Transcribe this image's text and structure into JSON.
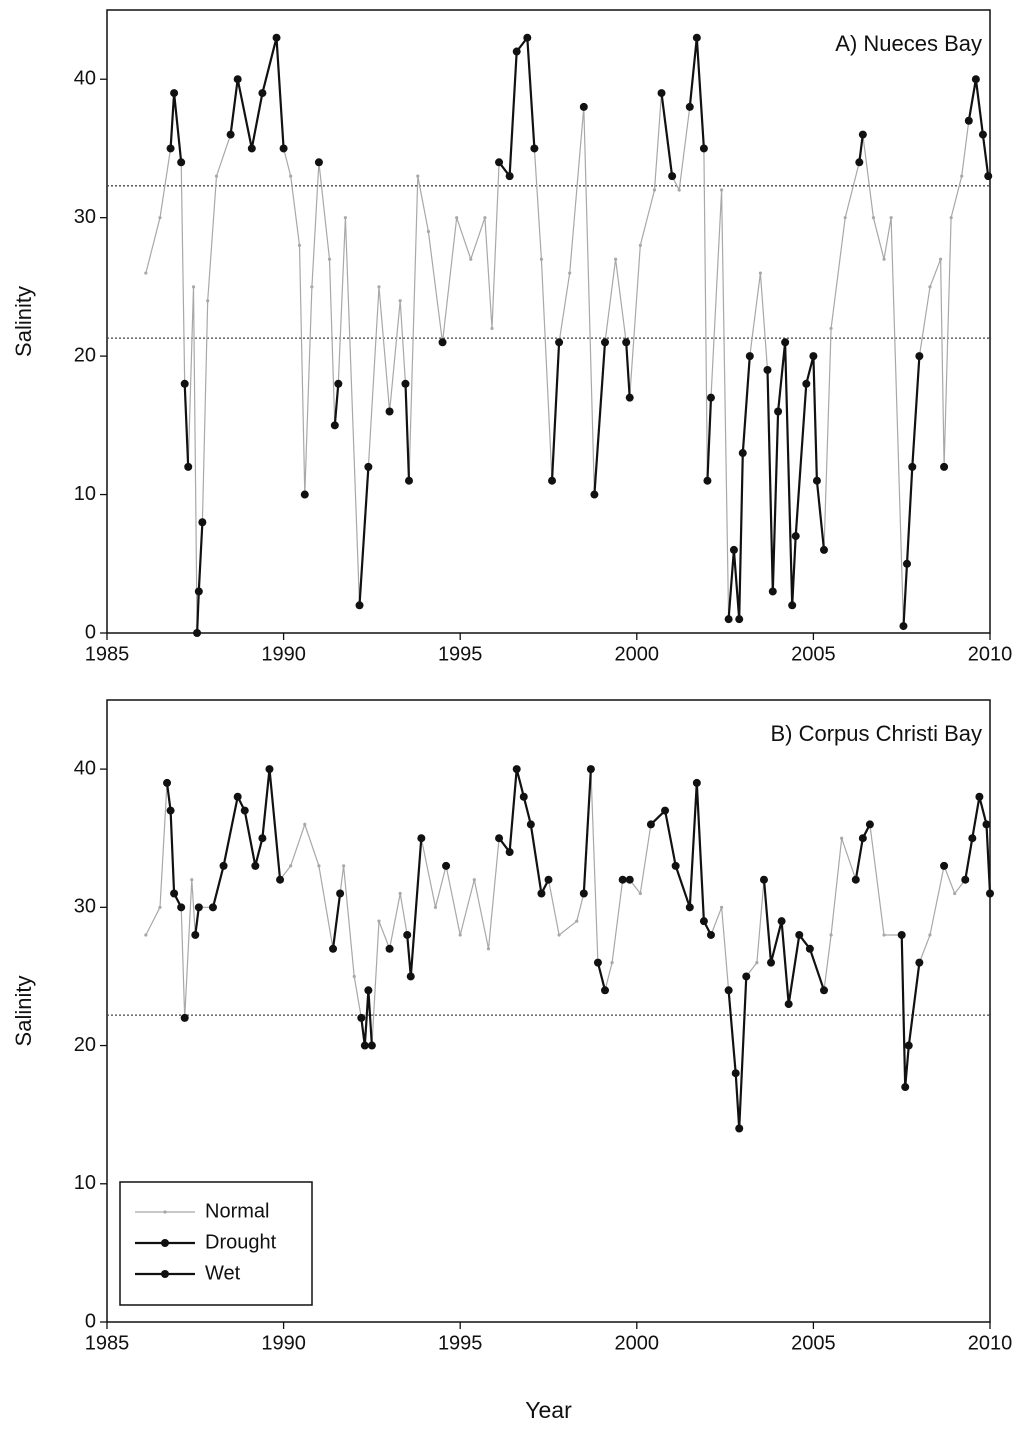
{
  "chart_data": [
    {
      "type": "line",
      "title": "A) Nueces Bay",
      "y_label": "Salinity",
      "x": [
        1986.1,
        1986.5,
        1986.8,
        1986.9,
        1987.1,
        1987.2,
        1987.3,
        1987.45,
        1987.55,
        1987.6,
        1987.7,
        1987.85,
        1988.1,
        1988.5,
        1988.7,
        1989.1,
        1989.4,
        1989.8,
        1990.0,
        1990.2,
        1990.45,
        1990.6,
        1990.8,
        1991.0,
        1991.3,
        1991.45,
        1991.55,
        1991.75,
        1992.15,
        1992.4,
        1992.7,
        1993.0,
        1993.3,
        1993.45,
        1993.55,
        1993.8,
        1994.1,
        1994.5,
        1994.9,
        1995.3,
        1995.7,
        1995.9,
        1996.1,
        1996.4,
        1996.6,
        1996.9,
        1997.1,
        1997.3,
        1997.6,
        1997.8,
        1998.1,
        1998.5,
        1998.8,
        1999.1,
        1999.4,
        1999.7,
        1999.8,
        2000.1,
        2000.5,
        2000.7,
        2001.0,
        2001.2,
        2001.5,
        2001.7,
        2001.9,
        2002.0,
        2002.1,
        2002.4,
        2002.6,
        2002.75,
        2002.9,
        2003.0,
        2003.2,
        2003.5,
        2003.7,
        2003.85,
        2004.0,
        2004.2,
        2004.4,
        2004.5,
        2004.8,
        2005.0,
        2005.1,
        2005.3,
        2005.5,
        2005.9,
        2006.3,
        2006.4,
        2006.7,
        2007.0,
        2007.2,
        2007.55,
        2007.65,
        2007.8,
        2008.0,
        2008.3,
        2008.6,
        2008.7,
        2008.9,
        2009.2,
        2009.4,
        2009.6,
        2009.8,
        2009.95
      ],
      "series": [
        {
          "name": "Normal",
          "color": "#a8a8a8",
          "values": [
            26,
            30,
            35,
            39,
            34,
            18,
            12,
            25,
            0,
            3,
            8,
            24,
            33,
            36,
            40,
            35,
            39,
            43,
            35,
            33,
            28,
            10,
            25,
            34,
            27,
            15,
            18,
            30,
            2,
            12,
            25,
            16,
            24,
            18,
            11,
            33,
            29,
            21,
            30,
            27,
            30,
            22,
            34,
            33,
            42,
            43,
            35,
            27,
            11,
            21,
            26,
            38,
            10,
            21,
            27,
            21,
            17,
            28,
            32,
            39,
            33,
            32,
            38,
            43,
            35,
            11,
            17,
            32,
            1,
            6,
            1,
            13,
            20,
            26,
            19,
            3,
            16,
            21,
            2,
            7,
            18,
            20,
            11,
            6,
            22,
            30,
            34,
            36,
            30,
            27,
            30,
            0.5,
            5,
            12,
            20,
            25,
            27,
            12,
            30,
            33,
            37,
            40,
            36,
            33
          ]
        },
        {
          "name": "Drought",
          "color": "#111111",
          "values": [
            null,
            null,
            35,
            39,
            34,
            null,
            null,
            null,
            null,
            null,
            null,
            null,
            null,
            36,
            40,
            35,
            39,
            43,
            35,
            null,
            null,
            null,
            null,
            34,
            null,
            null,
            null,
            null,
            null,
            null,
            null,
            null,
            null,
            null,
            null,
            null,
            null,
            null,
            null,
            null,
            null,
            null,
            34,
            33,
            42,
            43,
            35,
            null,
            null,
            null,
            null,
            38,
            null,
            null,
            null,
            null,
            null,
            null,
            null,
            39,
            33,
            null,
            38,
            43,
            35,
            null,
            null,
            null,
            null,
            null,
            null,
            null,
            null,
            null,
            null,
            null,
            null,
            null,
            null,
            null,
            null,
            null,
            null,
            null,
            null,
            null,
            34,
            36,
            null,
            null,
            null,
            null,
            null,
            null,
            null,
            null,
            null,
            null,
            null,
            null,
            37,
            40,
            36,
            33
          ]
        },
        {
          "name": "Wet",
          "color": "#111111",
          "values": [
            null,
            null,
            null,
            null,
            null,
            18,
            12,
            null,
            0,
            3,
            8,
            null,
            null,
            null,
            null,
            null,
            null,
            null,
            null,
            null,
            null,
            10,
            null,
            null,
            null,
            15,
            18,
            null,
            2,
            12,
            null,
            16,
            null,
            18,
            11,
            null,
            null,
            21,
            null,
            null,
            null,
            null,
            null,
            null,
            null,
            null,
            null,
            null,
            11,
            21,
            null,
            null,
            10,
            21,
            null,
            21,
            17,
            null,
            null,
            null,
            null,
            null,
            null,
            null,
            null,
            11,
            17,
            null,
            1,
            6,
            1,
            13,
            20,
            null,
            19,
            3,
            16,
            21,
            2,
            7,
            18,
            20,
            11,
            6,
            null,
            null,
            null,
            null,
            null,
            null,
            null,
            0.5,
            5,
            12,
            20,
            null,
            null,
            12,
            null,
            null,
            null,
            null,
            null,
            null
          ]
        }
      ],
      "reference_lines": [
        32.3,
        21.3
      ],
      "xlim": [
        1985,
        2010
      ],
      "xticks": [
        1985,
        1990,
        1995,
        2000,
        2005,
        2010
      ],
      "ylim": [
        0,
        45
      ],
      "yticks": [
        0,
        10,
        20,
        30,
        40
      ]
    },
    {
      "type": "line",
      "title": "B) Corpus Christi Bay",
      "y_label": "Salinity",
      "x_label": "Year",
      "x": [
        1986.1,
        1986.5,
        1986.7,
        1986.8,
        1986.9,
        1987.1,
        1987.2,
        1987.4,
        1987.5,
        1987.6,
        1988.0,
        1988.3,
        1988.7,
        1988.9,
        1989.2,
        1989.4,
        1989.6,
        1989.9,
        1990.2,
        1990.6,
        1991.0,
        1991.4,
        1991.6,
        1991.7,
        1992.0,
        1992.2,
        1992.3,
        1992.4,
        1992.5,
        1992.7,
        1993.0,
        1993.3,
        1993.5,
        1993.6,
        1993.9,
        1994.3,
        1994.6,
        1995.0,
        1995.4,
        1995.8,
        1996.1,
        1996.4,
        1996.6,
        1996.8,
        1997.0,
        1997.3,
        1997.5,
        1997.8,
        1998.3,
        1998.5,
        1998.7,
        1998.9,
        1999.1,
        1999.3,
        1999.6,
        1999.8,
        2000.1,
        2000.4,
        2000.8,
        2001.1,
        2001.5,
        2001.7,
        2001.9,
        2002.1,
        2002.4,
        2002.6,
        2002.8,
        2002.9,
        2003.1,
        2003.4,
        2003.6,
        2003.8,
        2004.1,
        2004.3,
        2004.6,
        2004.9,
        2005.3,
        2005.5,
        2005.8,
        2006.2,
        2006.4,
        2006.6,
        2007.0,
        2007.5,
        2007.6,
        2007.7,
        2008.0,
        2008.3,
        2008.7,
        2009.0,
        2009.3,
        2009.5,
        2009.7,
        2009.9,
        2010.0
      ],
      "series": [
        {
          "name": "Normal",
          "color": "#a8a8a8",
          "values": [
            28,
            30,
            39,
            37,
            31,
            30,
            22,
            32,
            28,
            30,
            30,
            33,
            38,
            37,
            33,
            35,
            40,
            32,
            33,
            36,
            33,
            27,
            31,
            33,
            25,
            22,
            20,
            24,
            20,
            29,
            27,
            31,
            28,
            25,
            35,
            30,
            33,
            28,
            32,
            27,
            35,
            34,
            40,
            38,
            36,
            31,
            32,
            28,
            29,
            31,
            40,
            26,
            24,
            26,
            32,
            32,
            31,
            36,
            37,
            33,
            30,
            39,
            29,
            28,
            30,
            24,
            18,
            14,
            25,
            26,
            32,
            26,
            29,
            23,
            28,
            27,
            24,
            28,
            35,
            32,
            35,
            36,
            28,
            28,
            17,
            20,
            26,
            28,
            33,
            31,
            32,
            35,
            38,
            36,
            31
          ]
        },
        {
          "name": "Drought",
          "color": "#111111",
          "values": [
            null,
            null,
            39,
            37,
            31,
            30,
            null,
            null,
            null,
            null,
            30,
            33,
            38,
            37,
            33,
            35,
            40,
            32,
            null,
            null,
            null,
            27,
            31,
            null,
            null,
            null,
            null,
            null,
            null,
            null,
            27,
            null,
            28,
            25,
            35,
            null,
            33,
            null,
            null,
            null,
            35,
            34,
            40,
            38,
            36,
            31,
            32,
            null,
            null,
            31,
            40,
            null,
            null,
            null,
            32,
            32,
            null,
            36,
            37,
            33,
            30,
            39,
            29,
            28,
            null,
            null,
            null,
            null,
            null,
            null,
            32,
            26,
            29,
            23,
            28,
            27,
            24,
            null,
            null,
            32,
            35,
            36,
            null,
            null,
            null,
            null,
            null,
            null,
            33,
            null,
            32,
            35,
            38,
            36,
            31
          ]
        },
        {
          "name": "Wet",
          "color": "#111111",
          "values": [
            null,
            null,
            null,
            null,
            null,
            null,
            22,
            null,
            28,
            30,
            null,
            null,
            null,
            null,
            null,
            null,
            null,
            null,
            null,
            null,
            null,
            null,
            null,
            null,
            null,
            22,
            20,
            24,
            20,
            null,
            null,
            null,
            null,
            null,
            null,
            null,
            null,
            null,
            null,
            null,
            null,
            null,
            null,
            null,
            null,
            null,
            null,
            null,
            null,
            null,
            null,
            26,
            24,
            null,
            null,
            null,
            null,
            null,
            null,
            null,
            null,
            null,
            null,
            null,
            null,
            24,
            18,
            14,
            25,
            null,
            null,
            null,
            null,
            null,
            null,
            null,
            null,
            null,
            null,
            null,
            null,
            null,
            null,
            28,
            17,
            20,
            26,
            null,
            null,
            null,
            null,
            null,
            null,
            null,
            null
          ]
        }
      ],
      "reference_lines": [
        22.2
      ],
      "legend": "lower left",
      "xlim": [
        1985,
        2010
      ],
      "xticks": [
        1985,
        1990,
        1995,
        2000,
        2005,
        2010
      ],
      "ylim": [
        0,
        45
      ],
      "yticks": [
        0,
        10,
        20,
        30,
        40
      ]
    }
  ]
}
